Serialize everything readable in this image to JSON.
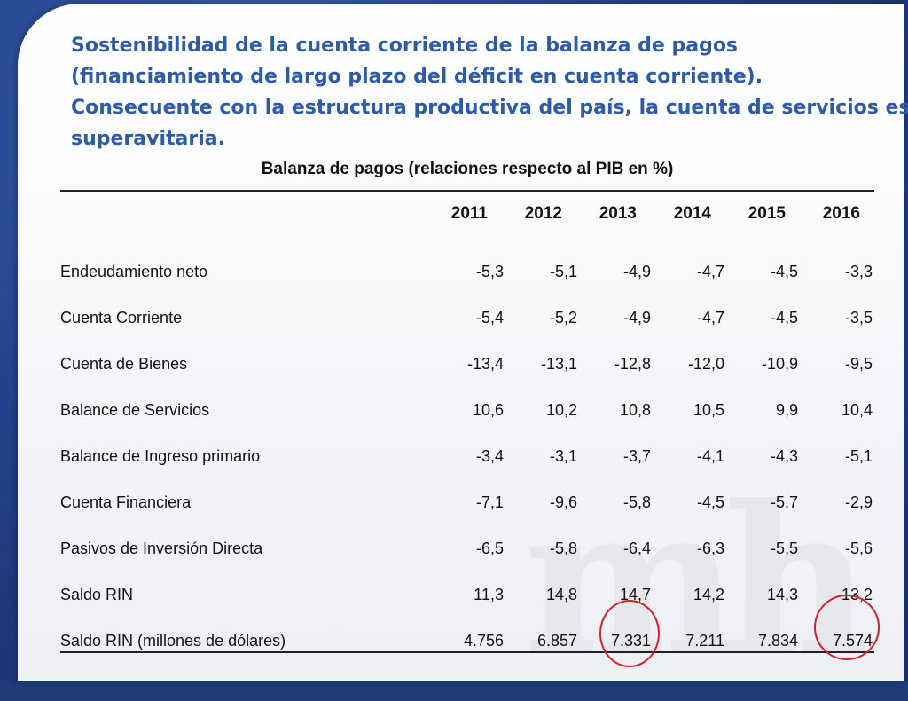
{
  "heading": {
    "line1": "Sostenibilidad de la cuenta corriente de la balanza de pagos",
    "line2": "(financiamiento de largo plazo del déficit en cuenta corriente).",
    "line3": "Consecuente con la estructura productiva del país, la cuenta de servicios es",
    "line4": "superavitaria."
  },
  "table": {
    "title": "Balanza de pagos (relaciones respecto al PIB en %)",
    "years": [
      "2011",
      "2012",
      "2013",
      "2014",
      "2015",
      "2016"
    ],
    "rows": [
      {
        "label": "Endeudamiento neto",
        "values": [
          "-5,3",
          "-5,1",
          "-4,9",
          "-4,7",
          "-4,5",
          "-3,3"
        ]
      },
      {
        "label": "Cuenta Corriente",
        "values": [
          "-5,4",
          "-5,2",
          "-4,9",
          "-4,7",
          "-4,5",
          "-3,5"
        ]
      },
      {
        "label": "Cuenta de Bienes",
        "values": [
          "-13,4",
          "-13,1",
          "-12,8",
          "-12,0",
          "-10,9",
          "-9,5"
        ]
      },
      {
        "label": "Balance de Servicios",
        "values": [
          "10,6",
          "10,2",
          "10,8",
          "10,5",
          "9,9",
          "10,4"
        ]
      },
      {
        "label": "Balance de Ingreso primario",
        "values": [
          "-3,4",
          "-3,1",
          "-3,7",
          "-4,1",
          "-4,3",
          "-5,1"
        ]
      },
      {
        "label": "Cuenta Financiera",
        "values": [
          "-7,1",
          "-9,6",
          "-5,8",
          "-4,5",
          "-5,7",
          "-2,9"
        ]
      },
      {
        "label": "Pasivos de Inversión Directa",
        "values": [
          "-6,5",
          "-5,8",
          "-6,4",
          "-6,3",
          "-5,5",
          "-5,6"
        ]
      },
      {
        "label": "Saldo RIN",
        "values": [
          "11,3",
          "14,8",
          "14,7",
          "14,2",
          "14,3",
          "13,2"
        ]
      },
      {
        "label": "Saldo RIN (millones de dólares)",
        "values": [
          "4.756",
          "6.857",
          "7.331",
          "7.211",
          "7.834",
          "7.574"
        ]
      }
    ]
  },
  "watermark": "mh",
  "colors": {
    "heading": "#2e5ba8",
    "highlight_circle": "#d3232a",
    "background_frame": "#1f3b78"
  }
}
